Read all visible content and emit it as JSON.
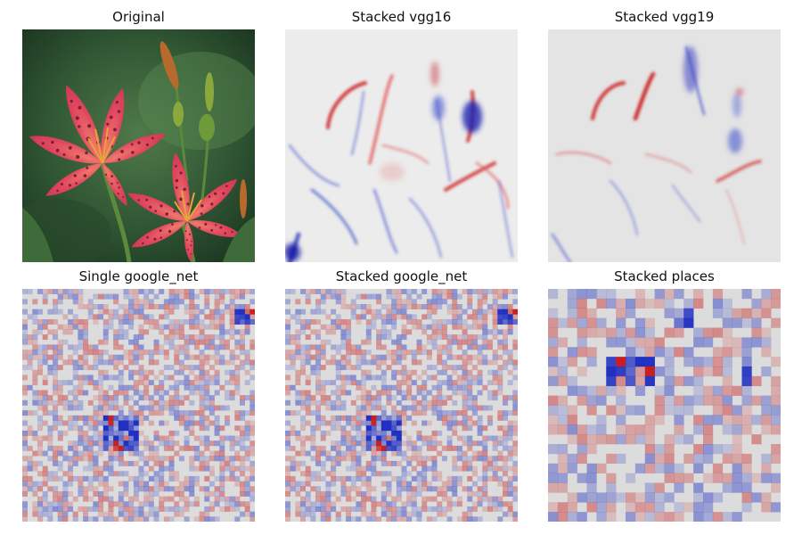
{
  "panels": [
    {
      "title": "Original"
    },
    {
      "title": "Stacked vgg16"
    },
    {
      "title": "Stacked vgg19"
    },
    {
      "title": "Single google_net"
    },
    {
      "title": "Stacked google_net"
    },
    {
      "title": "Stacked places"
    }
  ],
  "colors": {
    "background": "#ffffff",
    "heatmap_neutral": "#dcdcdc",
    "heatmap_positive": "#c80000",
    "heatmap_negative": "#0000c8",
    "foliage_dark": "#1d3a23",
    "foliage_mid": "#3f6b3a",
    "petal": "#e0475f",
    "petal_spots": "#7a1f3a",
    "stamen": "#e8a33a"
  }
}
